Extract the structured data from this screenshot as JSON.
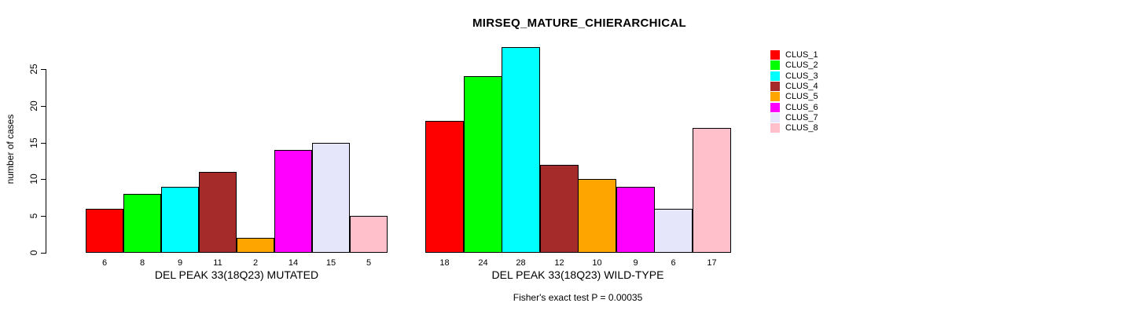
{
  "chart_data": {
    "type": "bar",
    "title": "MIRSEQ_MATURE_CHIERARCHICAL",
    "ylabel": "number of cases",
    "xlabel": "",
    "ylim": [
      0,
      25
    ],
    "yticks": [
      0,
      5,
      10,
      15,
      20,
      25
    ],
    "grid": false,
    "legend_position": "right",
    "bar_border_color": "#000000",
    "groups": [
      {
        "label": "DEL PEAK 33(18Q23) MUTATED",
        "values": [
          6,
          8,
          9,
          11,
          2,
          14,
          15,
          5
        ]
      },
      {
        "label": "DEL PEAK 33(18Q23) WILD-TYPE",
        "values": [
          18,
          24,
          28,
          12,
          10,
          9,
          6,
          17
        ]
      }
    ],
    "series": [
      {
        "name": "CLUS_1",
        "color": "#FF0000",
        "values": [
          6,
          18
        ]
      },
      {
        "name": "CLUS_2",
        "color": "#00FF00",
        "values": [
          8,
          24
        ]
      },
      {
        "name": "CLUS_3",
        "color": "#00FFFF",
        "values": [
          9,
          28
        ]
      },
      {
        "name": "CLUS_4",
        "color": "#A52A2A",
        "values": [
          11,
          12
        ]
      },
      {
        "name": "CLUS_5",
        "color": "#FFA500",
        "values": [
          2,
          10
        ]
      },
      {
        "name": "CLUS_6",
        "color": "#FF00FF",
        "values": [
          14,
          9
        ]
      },
      {
        "name": "CLUS_7",
        "color": "#E6E6FA",
        "values": [
          15,
          6
        ]
      },
      {
        "name": "CLUS_8",
        "color": "#FFC0CB",
        "values": [
          5,
          17
        ]
      }
    ],
    "annotation": "Fisher's exact test P = 0.00035"
  }
}
